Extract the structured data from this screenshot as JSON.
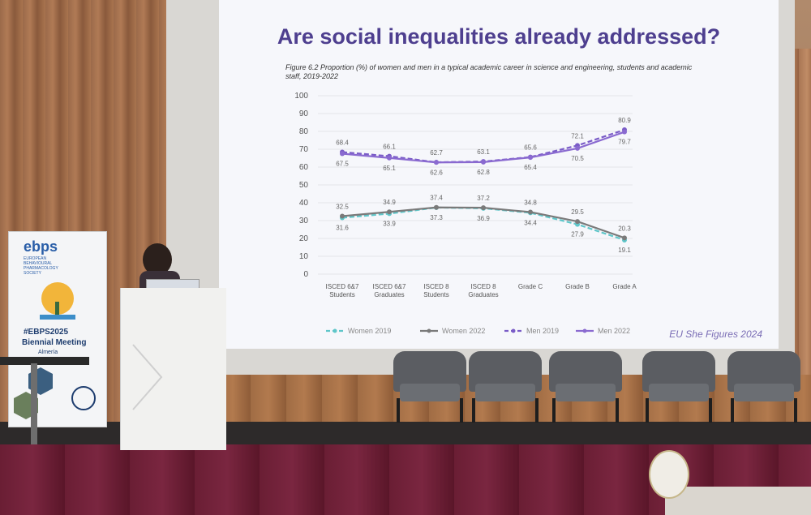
{
  "slide": {
    "title": "Are social inequalities already addressed?",
    "caption": "Figure 6.2 Proportion (%) of women and men in a typical academic career in science and engineering, students and academic staff, 2019-2022",
    "source": "EU She Figures 2024"
  },
  "chart_data": {
    "type": "line",
    "categories": [
      "ISCED 6&7 Students",
      "ISCED 6&7 Graduates",
      "ISCED 8 Students",
      "ISCED 8 Graduates",
      "Grade C",
      "Grade B",
      "Grade A"
    ],
    "ylim": [
      0,
      100
    ],
    "yticks": [
      0,
      10,
      20,
      30,
      40,
      50,
      60,
      70,
      80,
      90,
      100
    ],
    "grid": true,
    "legend_position": "bottom",
    "series": [
      {
        "name": "Women 2019",
        "values": [
          31.6,
          33.9,
          37.3,
          36.9,
          34.4,
          27.9,
          19.1
        ],
        "color": "#5fc6c9",
        "dashed": true
      },
      {
        "name": "Women 2022",
        "values": [
          32.5,
          34.9,
          37.4,
          37.2,
          34.8,
          29.5,
          20.3
        ],
        "color": "#7a7a7a",
        "dashed": false
      },
      {
        "name": "Men 2019",
        "values": [
          68.4,
          66.1,
          62.7,
          63.1,
          65.6,
          72.1,
          80.9
        ],
        "color": "#7a5cc7",
        "dashed": true
      },
      {
        "name": "Men 2022",
        "values": [
          67.5,
          65.1,
          62.6,
          62.8,
          65.4,
          70.5,
          79.7
        ],
        "color": "#8a6ad0",
        "dashed": false
      }
    ],
    "labels_above": [
      [
        32.5,
        34.9,
        37.4,
        37.2,
        34.8,
        29.5,
        20.3
      ],
      [
        68.4,
        66.1,
        62.7,
        63.1,
        65.6,
        72.1,
        80.9
      ]
    ],
    "labels_below": [
      [
        31.6,
        33.9,
        37.3,
        36.9,
        34.4,
        27.9,
        19.1
      ],
      [
        67.5,
        65.1,
        62.6,
        62.8,
        65.4,
        70.5,
        79.7
      ]
    ]
  },
  "banner": {
    "logo": "ebps",
    "subtitle": "EUROPEAN BEHAVIOURAL PHARMACOLOGY SOCIETY",
    "hashtag": "#EBPS2025",
    "meeting": "Biennial Meeting",
    "city": "Almería"
  }
}
